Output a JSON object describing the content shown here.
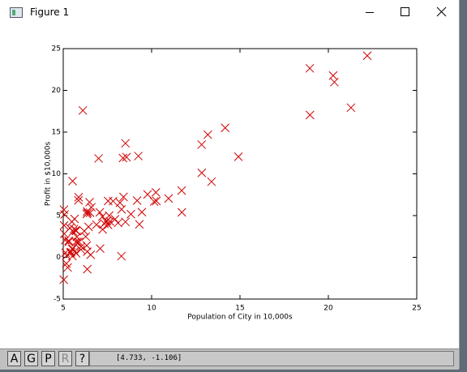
{
  "window": {
    "title": "Figure 1"
  },
  "toolbar": {
    "buttons": [
      "A",
      "G",
      "P",
      "R",
      "?"
    ],
    "coordinates": "[4.733, -1.106]"
  },
  "chart_data": {
    "type": "scatter",
    "x_label": "Population of City in 10,000s",
    "y_label": "Profit in $10,000s",
    "xlim": [
      5,
      25
    ],
    "ylim": [
      -5,
      25
    ],
    "xticks": [
      5,
      10,
      15,
      20,
      25
    ],
    "yticks": [
      -5,
      0,
      5,
      10,
      15,
      20,
      25
    ],
    "marker": "x",
    "color": "#d00000",
    "x": [
      6.11,
      5.53,
      8.52,
      7.0,
      5.86,
      8.38,
      7.48,
      8.58,
      6.49,
      5.05,
      5.71,
      14.16,
      5.73,
      8.41,
      5.64,
      5.38,
      6.37,
      5.13,
      6.43,
      7.07,
      6.19,
      20.27,
      5.49,
      6.33,
      5.56,
      18.95,
      12.83,
      10.96,
      13.18,
      22.2,
      5.25,
      6.59,
      9.25,
      5.89,
      8.21,
      7.93,
      8.1,
      5.61,
      12.84,
      6.35,
      5.41,
      6.88,
      11.71,
      5.77,
      7.82,
      7.09,
      5.07,
      5.8,
      11.7,
      5.54,
      7.54,
      5.31,
      7.42,
      7.6,
      6.33,
      6.36,
      6.27,
      5.64,
      9.31,
      9.45,
      8.83,
      5.18,
      21.28,
      14.91,
      18.96,
      7.22,
      8.3,
      10.24,
      5.5,
      20.34,
      10.14,
      7.33,
      6.01,
      7.23,
      5.03,
      6.55,
      7.54,
      5.04,
      10.27,
      5.11,
      5.73,
      5.19,
      6.36,
      9.77,
      6.52,
      8.52,
      9.18,
      6.0,
      5.52,
      5.06,
      5.71,
      7.64,
      5.87,
      5.31,
      8.29,
      13.39,
      5.44
    ],
    "y": [
      17.59,
      9.13,
      13.66,
      11.85,
      6.82,
      11.89,
      4.35,
      12.0,
      6.6,
      3.82,
      3.25,
      15.51,
      3.16,
      7.23,
      0.72,
      3.51,
      5.3,
      0.56,
      3.65,
      5.39,
      3.14,
      21.77,
      4.26,
      5.19,
      3.08,
      22.64,
      13.5,
      7.05,
      14.69,
      24.15,
      -1.22,
      6.0,
      12.13,
      1.85,
      6.54,
      4.56,
      4.12,
      3.39,
      10.12,
      5.5,
      0.56,
      3.91,
      5.39,
      2.44,
      6.73,
      1.05,
      5.13,
      1.84,
      8.0,
      1.02,
      6.75,
      1.84,
      4.29,
      5.0,
      1.42,
      -1.42,
      2.48,
      4.6,
      3.96,
      5.41,
      5.17,
      -0.74,
      17.93,
      12.05,
      17.05,
      4.89,
      5.74,
      7.78,
      1.02,
      20.99,
      6.68,
      4.03,
      1.28,
      3.34,
      -2.68,
      0.3,
      3.88,
      5.7,
      6.75,
      2.06,
      0.48,
      0.2,
      0.68,
      7.54,
      5.34,
      4.24,
      6.8,
      0.93,
      0.15,
      2.82,
      1.85,
      4.3,
      7.2,
      1.99,
      0.14,
      9.06,
      0.62
    ]
  }
}
